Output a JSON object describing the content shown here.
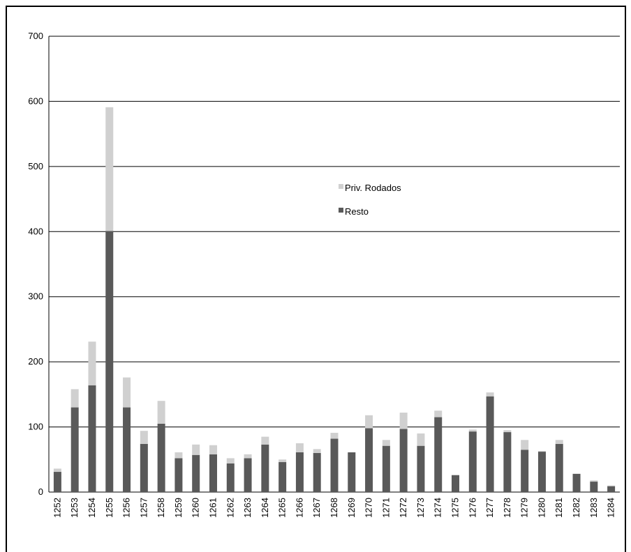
{
  "chart_data": {
    "type": "bar",
    "stacked": true,
    "title": "",
    "xlabel": "",
    "ylabel": "",
    "ylim": [
      0,
      700
    ],
    "yticks": [
      0,
      100,
      200,
      300,
      400,
      500,
      600,
      700
    ],
    "grid": true,
    "legend_position": "center",
    "categories": [
      "1252",
      "1253",
      "1254",
      "1255",
      "1256",
      "1257",
      "1258",
      "1259",
      "1260",
      "1261",
      "1262",
      "1263",
      "1264",
      "1265",
      "1266",
      "1267",
      "1268",
      "1269",
      "1270",
      "1271",
      "1272",
      "1273",
      "1274",
      "1275",
      "1276",
      "1277",
      "1278",
      "1279",
      "1280",
      "1281",
      "1282",
      "1283",
      "1284"
    ],
    "series": [
      {
        "name": "Resto",
        "color": "#595959",
        "values": [
          31,
          130,
          164,
          401,
          130,
          74,
          105,
          52,
          57,
          58,
          44,
          52,
          73,
          46,
          61,
          60,
          82,
          61,
          98,
          71,
          97,
          71,
          115,
          26,
          93,
          147,
          92,
          65,
          62,
          74,
          28,
          16,
          9
        ]
      },
      {
        "name": "Priv. Rodados",
        "color": "#d0d0d0",
        "values": [
          5,
          28,
          67,
          190,
          46,
          20,
          35,
          9,
          16,
          14,
          8,
          6,
          12,
          4,
          14,
          6,
          9,
          0,
          20,
          9,
          25,
          19,
          10,
          0,
          3,
          6,
          3,
          15,
          1,
          6,
          0,
          2,
          1
        ]
      }
    ]
  }
}
